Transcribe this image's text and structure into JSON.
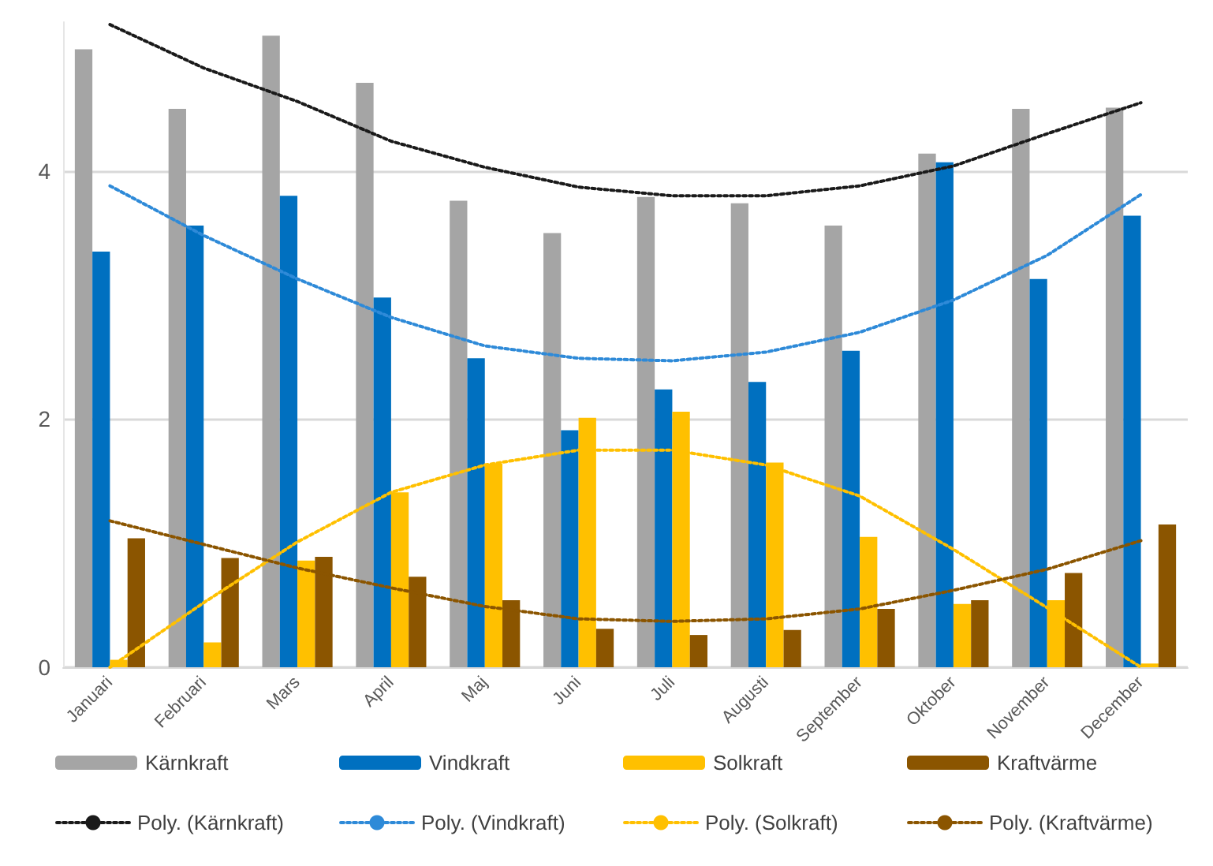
{
  "chart_data": {
    "type": "bar",
    "categories": [
      "Januari",
      "Februari",
      "Mars",
      "April",
      "Maj",
      "Juni",
      "Juli",
      "Augusti",
      "September",
      "Oktober",
      "November",
      "December"
    ],
    "series": [
      {
        "name": "Kärnkraft",
        "color": "#a5a5a5",
        "values": [
          4.98,
          4.5,
          5.09,
          4.71,
          3.76,
          3.5,
          3.79,
          3.74,
          3.56,
          4.14,
          4.5,
          4.51
        ]
      },
      {
        "name": "Vindkraft",
        "color": "#0070c0",
        "values": [
          3.35,
          3.56,
          3.8,
          2.98,
          2.49,
          1.91,
          2.24,
          2.3,
          2.55,
          4.07,
          3.13,
          3.64
        ]
      },
      {
        "name": "Solkraft",
        "color": "#ffc000",
        "values": [
          0.06,
          0.2,
          0.86,
          1.41,
          1.64,
          2.01,
          2.06,
          1.65,
          1.05,
          0.51,
          0.54,
          0.03
        ]
      },
      {
        "name": "Kraftvärme",
        "color": "#8b5500",
        "values": [
          1.04,
          0.88,
          0.89,
          0.73,
          0.54,
          0.31,
          0.26,
          0.3,
          0.47,
          0.54,
          0.76,
          1.15
        ]
      },
      {
        "name": "Poly. (Kärnkraft)",
        "type": "line",
        "line_style": "dotted",
        "marker": "none",
        "color": "#1a1a1a",
        "values": [
          5.18,
          4.83,
          4.56,
          4.24,
          4.03,
          3.87,
          3.8,
          3.8,
          3.88,
          4.04,
          4.3,
          4.55
        ]
      },
      {
        "name": "Poly. (Vindkraft)",
        "type": "line",
        "line_style": "dotted",
        "marker": "none",
        "color": "#2e8ad8",
        "values": [
          3.88,
          3.48,
          3.13,
          2.82,
          2.59,
          2.49,
          2.47,
          2.54,
          2.7,
          2.96,
          3.32,
          3.81
        ]
      },
      {
        "name": "Poly. (Solkraft)",
        "type": "line",
        "line_style": "dotted",
        "marker": "none",
        "color": "#ffc000",
        "values": [
          0,
          0.52,
          1.01,
          1.41,
          1.63,
          1.75,
          1.75,
          1.63,
          1.38,
          0.95,
          0.48,
          0
        ]
      },
      {
        "name": "Poly. (Kraftvärme)",
        "type": "line",
        "line_style": "dotted",
        "marker": "none",
        "color": "#8b5500",
        "values": [
          1.18,
          0.99,
          0.8,
          0.64,
          0.49,
          0.39,
          0.37,
          0.39,
          0.47,
          0.62,
          0.79,
          1.02
        ]
      }
    ],
    "ylim": [
      0,
      5.2
    ],
    "yticks": [
      0,
      2,
      4
    ],
    "grid": "y",
    "legend": "bottom"
  }
}
